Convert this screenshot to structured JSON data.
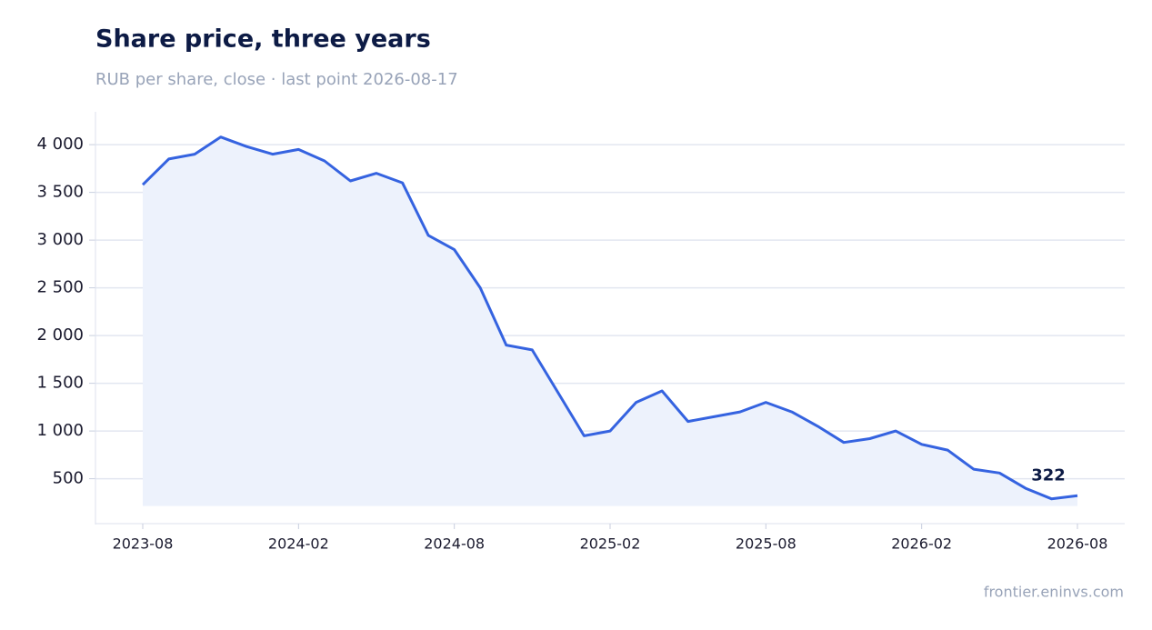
{
  "chart_data": {
    "type": "line",
    "title": "Share price, three years",
    "subtitle": "RUB per share, close · last point 2026-08-17",
    "source": "frontier.eninvs.com",
    "x": [
      "2023-08",
      "2023-09",
      "2023-10",
      "2023-11",
      "2023-12",
      "2024-01",
      "2024-02",
      "2024-03",
      "2024-04",
      "2024-05",
      "2024-06",
      "2024-07",
      "2024-08",
      "2024-09",
      "2024-10",
      "2024-11",
      "2024-12",
      "2025-01",
      "2025-02",
      "2025-03",
      "2025-04",
      "2025-05",
      "2025-06",
      "2025-07",
      "2025-08",
      "2025-09",
      "2025-10",
      "2025-11",
      "2025-12",
      "2026-01",
      "2026-02",
      "2026-03",
      "2026-04",
      "2026-05",
      "2026-06",
      "2026-07",
      "2026-08"
    ],
    "series": [
      {
        "color": "#3563e0",
        "fill": "#edf2fc",
        "values": [
          3580,
          3850,
          3900,
          4080,
          3980,
          3900,
          3950,
          3830,
          3620,
          3700,
          3600,
          3050,
          2900,
          2500,
          1900,
          1850,
          1400,
          950,
          1000,
          1300,
          1420,
          1100,
          1150,
          1200,
          1300,
          1200,
          1050,
          880,
          920,
          1000,
          860,
          800,
          600,
          560,
          400,
          290,
          322
        ]
      }
    ],
    "ylim": [
      20,
      4344
    ],
    "yticks": [
      500,
      {
        "value": 1000,
        "label": "1 000"
      },
      {
        "value": 1500,
        "label": "1 500"
      },
      {
        "value": 2000,
        "label": "2 000"
      },
      {
        "value": 2500,
        "label": "2 500"
      },
      {
        "value": 3000,
        "label": "3 000"
      },
      {
        "value": 3500,
        "label": "3 500"
      },
      {
        "value": 4000,
        "label": "4 000"
      }
    ],
    "grid": true
  }
}
